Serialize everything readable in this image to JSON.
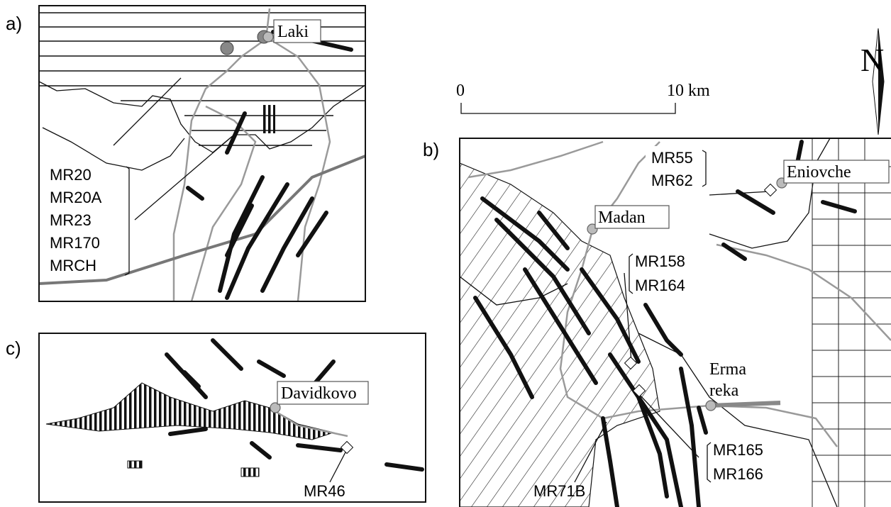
{
  "panels": [
    {
      "label": "a)",
      "places": [
        "Laki"
      ],
      "samples": [
        "MR20",
        "MR20A",
        "MR23",
        "MR170",
        "MRCH"
      ]
    },
    {
      "label": "b)",
      "places": [
        "Madan",
        "Eniovche",
        "Erma",
        "reka"
      ],
      "samples": [
        "MR55",
        "MR62",
        "MR158",
        "MR164",
        "MR165",
        "MR166",
        "MR71B"
      ]
    },
    {
      "label": "c)",
      "places": [
        "Davidkovo"
      ],
      "samples": [
        "MR46"
      ]
    }
  ],
  "scale_bar": {
    "start": "0",
    "end": "10 km"
  },
  "north": "N"
}
